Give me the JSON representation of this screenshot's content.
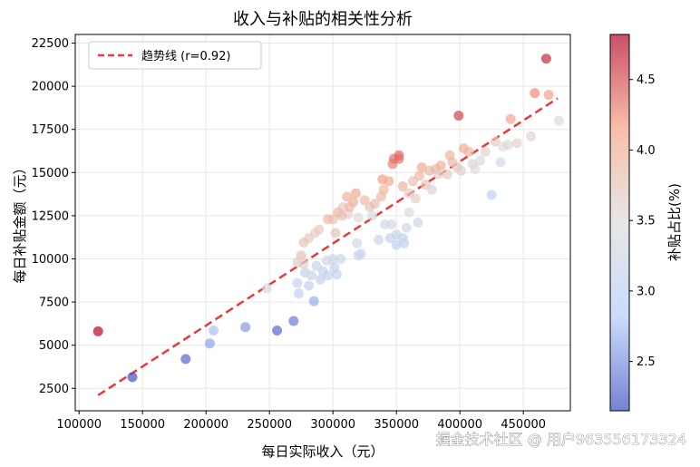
{
  "chart_data": {
    "type": "scatter",
    "title": "收入与补贴的相关性分析",
    "xlabel": "每日实际收入（元）",
    "ylabel": "每日补贴金额（元）",
    "xlim": [
      97000,
      487000
    ],
    "ylim": [
      1200,
      23000
    ],
    "xticks": [
      100000,
      150000,
      200000,
      250000,
      300000,
      350000,
      400000,
      450000
    ],
    "yticks": [
      2500,
      5000,
      7500,
      10000,
      12500,
      15000,
      17500,
      20000,
      22500
    ],
    "grid": true,
    "legend_position": "top-left",
    "trend": {
      "label": "趋势线 (r=0.92)",
      "color": "#e8393b",
      "start": [
        115000,
        2100
      ],
      "end": [
        477000,
        19300
      ]
    },
    "colorbar": {
      "label": "补贴占比(%)",
      "min": 2.15,
      "max": 4.82,
      "ticks": [
        2.5,
        3.0,
        3.5,
        4.0,
        4.5
      ],
      "colormap": "coolwarm",
      "colors": [
        "#3b4cc0",
        "#b4cdfa",
        "#dcdcdc",
        "#f6a385",
        "#b40426"
      ]
    },
    "points": [
      [
        115000,
        5800,
        4.8
      ],
      [
        142000,
        3150,
        2.2
      ],
      [
        184000,
        4200,
        2.3
      ],
      [
        203000,
        5100,
        2.6
      ],
      [
        206000,
        5850,
        2.75
      ],
      [
        231000,
        6050,
        2.55
      ],
      [
        256000,
        5850,
        2.3
      ],
      [
        269000,
        6400,
        2.4
      ],
      [
        285000,
        7550,
        2.65
      ],
      [
        248000,
        8300,
        3.35
      ],
      [
        273000,
        8000,
        3.0
      ],
      [
        272000,
        8600,
        3.15
      ],
      [
        281000,
        8450,
        3.05
      ],
      [
        278000,
        9200,
        3.1
      ],
      [
        283000,
        9050,
        3.15
      ],
      [
        290000,
        8800,
        3.05
      ],
      [
        292000,
        9300,
        3.1
      ],
      [
        287000,
        9600,
        3.2
      ],
      [
        296000,
        9050,
        3.0
      ],
      [
        301000,
        9500,
        3.1
      ],
      [
        300000,
        10000,
        3.2
      ],
      [
        303000,
        9100,
        3.0
      ],
      [
        295000,
        9900,
        3.25
      ],
      [
        306000,
        10000,
        3.2
      ],
      [
        320000,
        10200,
        3.1
      ],
      [
        322000,
        10300,
        3.15
      ],
      [
        319000,
        10900,
        3.3
      ],
      [
        345000,
        11200,
        3.1
      ],
      [
        350000,
        11400,
        3.15
      ],
      [
        356000,
        10900,
        3.0
      ],
      [
        355000,
        11200,
        3.1
      ],
      [
        350000,
        10800,
        3.05
      ],
      [
        336000,
        11100,
        3.2
      ],
      [
        341000,
        12000,
        3.3
      ],
      [
        346000,
        12000,
        3.35
      ],
      [
        358000,
        11800,
        3.3
      ],
      [
        367000,
        12100,
        3.25
      ],
      [
        360000,
        12700,
        3.45
      ],
      [
        331000,
        12500,
        3.4
      ],
      [
        320000,
        12400,
        3.5
      ],
      [
        312000,
        12600,
        3.6
      ],
      [
        308000,
        13000,
        3.7
      ],
      [
        300000,
        12300,
        3.8
      ],
      [
        302000,
        11500,
        3.75
      ],
      [
        289000,
        11700,
        3.7
      ],
      [
        286000,
        11500,
        3.65
      ],
      [
        281000,
        11200,
        3.7
      ],
      [
        277000,
        10950,
        3.75
      ],
      [
        275000,
        10200,
        3.8
      ],
      [
        272000,
        9800,
        3.7
      ],
      [
        277000,
        9700,
        3.6
      ],
      [
        296000,
        12300,
        3.9
      ],
      [
        304000,
        12700,
        3.95
      ],
      [
        307000,
        12500,
        3.85
      ],
      [
        313000,
        13000,
        3.9
      ],
      [
        316000,
        13300,
        4.0
      ],
      [
        311000,
        13600,
        3.95
      ],
      [
        318000,
        13800,
        4.05
      ],
      [
        325000,
        13400,
        3.9
      ],
      [
        329000,
        13000,
        3.75
      ],
      [
        333000,
        13200,
        3.85
      ],
      [
        338000,
        13600,
        3.9
      ],
      [
        340000,
        14000,
        3.95
      ],
      [
        344000,
        14500,
        4.05
      ],
      [
        339000,
        14600,
        4.15
      ],
      [
        347000,
        15500,
        4.3
      ],
      [
        348000,
        15800,
        4.35
      ],
      [
        352000,
        15800,
        4.35
      ],
      [
        352000,
        16000,
        4.4
      ],
      [
        355000,
        14200,
        3.95
      ],
      [
        360000,
        13800,
        3.7
      ],
      [
        365000,
        13500,
        3.65
      ],
      [
        363000,
        14500,
        3.8
      ],
      [
        368000,
        14800,
        3.9
      ],
      [
        373000,
        14300,
        3.75
      ],
      [
        378000,
        14000,
        3.6
      ],
      [
        370000,
        15300,
        4.05
      ],
      [
        376000,
        15100,
        3.9
      ],
      [
        381000,
        15200,
        3.95
      ],
      [
        385000,
        15400,
        4.0
      ],
      [
        390000,
        14900,
        3.7
      ],
      [
        394000,
        15600,
        3.85
      ],
      [
        398000,
        15300,
        3.75
      ],
      [
        401000,
        15100,
        3.6
      ],
      [
        403000,
        16400,
        4.05
      ],
      [
        407000,
        16200,
        3.95
      ],
      [
        410000,
        15500,
        3.55
      ],
      [
        416000,
        15700,
        3.45
      ],
      [
        420000,
        16200,
        3.6
      ],
      [
        428000,
        16800,
        3.7
      ],
      [
        434000,
        16500,
        3.5
      ],
      [
        432000,
        15600,
        3.3
      ],
      [
        438000,
        16600,
        3.55
      ],
      [
        445000,
        16700,
        3.6
      ],
      [
        456000,
        17100,
        3.55
      ],
      [
        478000,
        18000,
        3.5
      ],
      [
        425000,
        13700,
        2.95
      ],
      [
        399000,
        18300,
        4.55
      ],
      [
        440000,
        18100,
        4.1
      ],
      [
        459000,
        19600,
        4.25
      ],
      [
        470000,
        19500,
        4.15
      ],
      [
        468000,
        21600,
        4.65
      ],
      [
        383000,
        14900,
        3.65
      ],
      [
        392000,
        16000,
        3.95
      ],
      [
        412000,
        15200,
        3.5
      ]
    ]
  },
  "watermark": "掘金技术社区 @ 用户963556173324"
}
